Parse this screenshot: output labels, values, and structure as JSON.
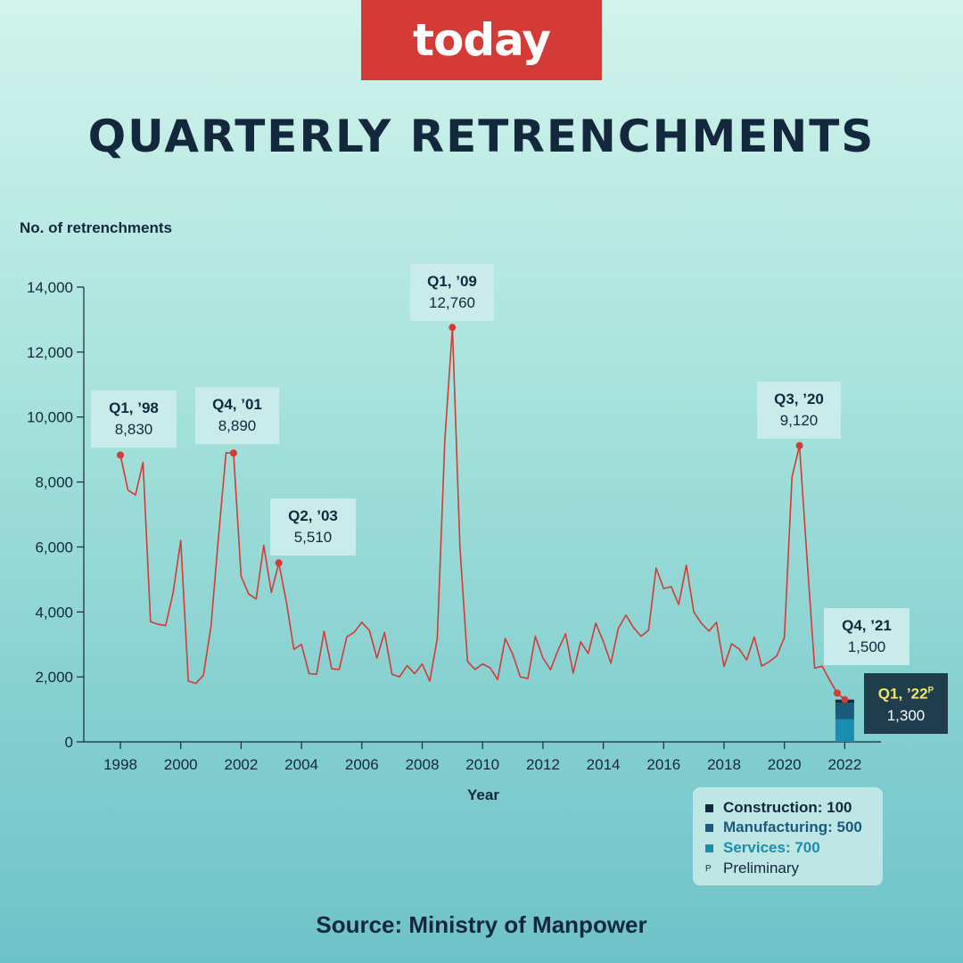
{
  "brand": {
    "logo_text": "today",
    "color": "#d43a36"
  },
  "title": "QUARTERLY RETRENCHMENTS",
  "source": "Source: Ministry of Manpower",
  "colors": {
    "line": "#d43a36",
    "construction": "#13283d",
    "manufacturing": "#1b5a7a",
    "services": "#1a8db0"
  },
  "chart_data": {
    "type": "line",
    "title": "QUARTERLY RETRENCHMENTS",
    "xlabel": "Year",
    "ylabel": "No. of retrenchments",
    "ylim": [
      0,
      14000
    ],
    "xlim": [
      1997,
      2023
    ],
    "yticks": [
      0,
      2000,
      4000,
      6000,
      8000,
      10000,
      12000,
      14000
    ],
    "ytick_labels": [
      "0",
      "2,000",
      "4,000",
      "6,000",
      "8,000",
      "10,000",
      "12,000",
      "14,000"
    ],
    "xticks": [
      1998,
      2000,
      2002,
      2004,
      2006,
      2008,
      2010,
      2012,
      2014,
      2016,
      2018,
      2020,
      2022
    ],
    "series": [
      {
        "name": "Retrenchments",
        "x": [
          1998.0,
          1998.25,
          1998.5,
          1998.75,
          1999.0,
          1999.25,
          1999.5,
          1999.75,
          2000.0,
          2000.25,
          2000.5,
          2000.75,
          2001.0,
          2001.25,
          2001.5,
          2001.75,
          2002.0,
          2002.25,
          2002.5,
          2002.75,
          2003.0,
          2003.25,
          2003.5,
          2003.75,
          2004.0,
          2004.25,
          2004.5,
          2004.75,
          2005.0,
          2005.25,
          2005.5,
          2005.75,
          2006.0,
          2006.25,
          2006.5,
          2006.75,
          2007.0,
          2007.25,
          2007.5,
          2007.75,
          2008.0,
          2008.25,
          2008.5,
          2008.75,
          2009.0,
          2009.25,
          2009.5,
          2009.75,
          2010.0,
          2010.25,
          2010.5,
          2010.75,
          2011.0,
          2011.25,
          2011.5,
          2011.75,
          2012.0,
          2012.25,
          2012.5,
          2012.75,
          2013.0,
          2013.25,
          2013.5,
          2013.75,
          2014.0,
          2014.25,
          2014.5,
          2014.75,
          2015.0,
          2015.25,
          2015.5,
          2015.75,
          2016.0,
          2016.25,
          2016.5,
          2016.75,
          2017.0,
          2017.25,
          2017.5,
          2017.75,
          2018.0,
          2018.25,
          2018.5,
          2018.75,
          2019.0,
          2019.25,
          2019.5,
          2019.75,
          2020.0,
          2020.25,
          2020.5,
          2020.75,
          2021.0,
          2021.25,
          2021.5,
          2021.75,
          2022.0
        ],
        "values": [
          8830,
          7750,
          7600,
          8600,
          3700,
          3620,
          3580,
          4600,
          6200,
          1870,
          1800,
          2050,
          3550,
          6300,
          8900,
          8890,
          5100,
          4550,
          4400,
          6050,
          4600,
          5510,
          4300,
          2850,
          3000,
          2100,
          2080,
          3400,
          2250,
          2230,
          3230,
          3380,
          3680,
          3430,
          2580,
          3370,
          2080,
          2000,
          2350,
          2100,
          2400,
          1870,
          3180,
          9300,
          12760,
          6000,
          2480,
          2230,
          2400,
          2280,
          1920,
          3180,
          2700,
          2000,
          1950,
          3250,
          2580,
          2220,
          2820,
          3330,
          2120,
          3080,
          2720,
          3650,
          3100,
          2420,
          3500,
          3900,
          3520,
          3250,
          3440,
          5350,
          4720,
          4780,
          4230,
          5440,
          4000,
          3650,
          3410,
          3680,
          2320,
          3020,
          2860,
          2520,
          3230,
          2330,
          2470,
          2650,
          3220,
          8150,
          9120,
          5650,
          2270,
          2330,
          1900,
          1500,
          1300
        ]
      }
    ],
    "annotations": [
      {
        "label": "Q1, ’98",
        "value": "8,830"
      },
      {
        "label": "Q4, ’01",
        "value": "8,890"
      },
      {
        "label": "Q2, ’03",
        "value": "5,510"
      },
      {
        "label": "Q1, ’09",
        "value": "12,760"
      },
      {
        "label": "Q3, ’20",
        "value": "9,120"
      },
      {
        "label": "Q4, ’21",
        "value": "1,500"
      },
      {
        "label": "Q1, ’22",
        "label_sup": "P",
        "value": "1,300"
      }
    ],
    "breakdown_q1_2022": {
      "x": 2022,
      "segments": [
        {
          "name": "Services",
          "value": 700
        },
        {
          "name": "Manufacturing",
          "value": 500
        },
        {
          "name": "Construction",
          "value": 100
        }
      ]
    }
  },
  "legend": {
    "construction": "Construction: 100",
    "manufacturing": "Manufacturing: 500",
    "services": "Services: 700",
    "preliminary_mark": "P",
    "preliminary": "Preliminary"
  }
}
